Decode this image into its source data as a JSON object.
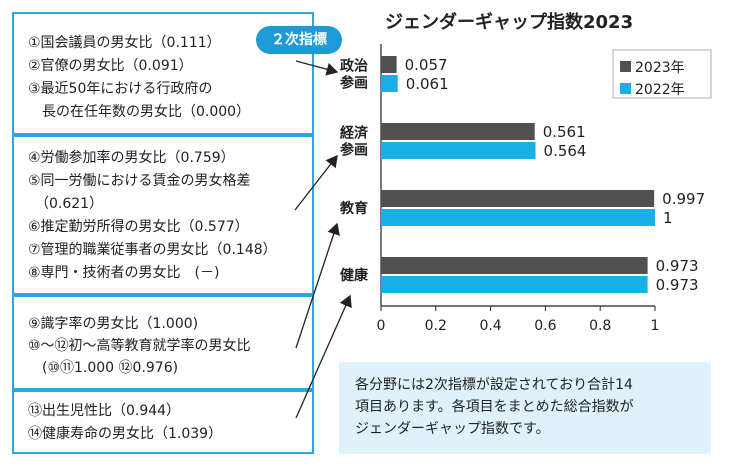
{
  "left_panels": [
    {
      "lines": [
        "①国会議員の男女比（0.111）",
        "②官僚の男女比（0.091）",
        "③最近50年における行政府の",
        "　長の在任年数の男女比（0.000）"
      ]
    },
    {
      "lines": [
        "④労働参加率の男女比（0.759）",
        "⑤同一労働における賃金の男女格差",
        "　（0.621）",
        "⑥推定勤労所得の男女比（0.577）",
        "⑦管理的職業従事者の男女比（0.148）",
        "⑧専門・技術者の男女比　(－)"
      ]
    },
    {
      "lines": [
        "⑨識字率の男女比（1.000)",
        "⑩～⑫初～高等教育就学率の男女比",
        "　(⑩⑪1.000 ⑫0.976)"
      ]
    },
    {
      "lines": [
        "⑬出生児性比（0.944）",
        "⑭健康寿命の男女比（1.039）"
      ]
    }
  ],
  "badge_label": "２次指標",
  "note_lines": [
    "各分野には2次指標が設定されており合計14",
    "項目あります。各項目をまとめた総合指数が",
    "ジェンダーギャップ指数です。"
  ],
  "colors": {
    "series_2023": "#505050",
    "series_2022": "#18aee8",
    "panel_border": "#29a9e0",
    "note_bg": "#dff2fb"
  },
  "chart_data": {
    "type": "bar",
    "orientation": "horizontal",
    "title": "ジェンダーギャップ指数2023",
    "categories": [
      "政治\n参画",
      "経済\n参画",
      "教育",
      "健康"
    ],
    "series": [
      {
        "name": "2023年",
        "values": [
          0.057,
          0.561,
          0.997,
          0.973
        ],
        "labels": [
          "0.057",
          "0.561",
          "0.997",
          "0.973"
        ]
      },
      {
        "name": "2022年",
        "values": [
          0.061,
          0.564,
          1.0,
          0.973
        ],
        "labels": [
          "0.061",
          "0.564",
          "1",
          "0.973"
        ]
      }
    ],
    "xlim": [
      0,
      1
    ],
    "ticks": [
      "0",
      "0.2",
      "0.4",
      "0.6",
      "0.8",
      "1"
    ],
    "legend": "top-right",
    "grid": false
  }
}
